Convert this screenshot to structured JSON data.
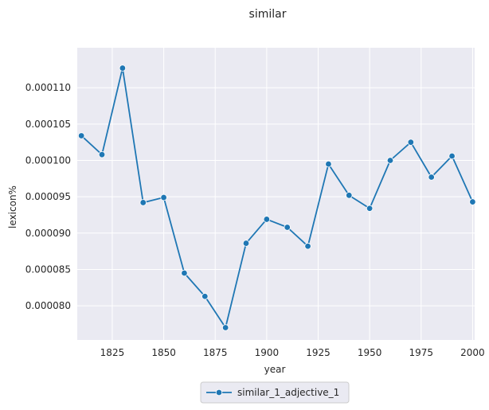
{
  "chart_data": {
    "type": "line",
    "title": "similar",
    "xlabel": "year",
    "ylabel": "lexicon%",
    "xlim": [
      1808,
      2001
    ],
    "ylim": [
      7.53e-05,
      0.0001155
    ],
    "xticks": [
      1825,
      1850,
      1875,
      1900,
      1925,
      1950,
      1975,
      2000
    ],
    "xtick_labels": [
      "1825",
      "1850",
      "1875",
      "1900",
      "1925",
      "1950",
      "1975",
      "2000"
    ],
    "yticks": [
      8e-05,
      8.5e-05,
      9e-05,
      9.5e-05,
      0.0001,
      0.000105,
      0.00011
    ],
    "ytick_labels": [
      "0.000080",
      "0.000085",
      "0.000090",
      "0.000095",
      "0.000100",
      "0.000105",
      "0.000110"
    ],
    "grid": true,
    "legend_position": "bottom-center",
    "series": [
      {
        "name": "similar_1_adjective_1",
        "color": "#1f77b4",
        "marker": "circle",
        "x": [
          1810,
          1820,
          1830,
          1840,
          1850,
          1860,
          1870,
          1880,
          1890,
          1900,
          1910,
          1920,
          1930,
          1940,
          1950,
          1960,
          1970,
          1980,
          1990,
          2000
        ],
        "y": [
          0.0001034,
          0.0001008,
          0.0001127,
          9.42e-05,
          9.49e-05,
          8.45e-05,
          8.13e-05,
          7.7e-05,
          8.86e-05,
          9.19e-05,
          9.08e-05,
          8.82e-05,
          9.95e-05,
          9.52e-05,
          9.34e-05,
          0.0001,
          0.0001025,
          9.77e-05,
          0.0001006,
          9.43e-05
        ]
      }
    ]
  },
  "colors": {
    "plot_background": "#eaeaf2",
    "grid": "#ffffff",
    "text": "#262626"
  }
}
